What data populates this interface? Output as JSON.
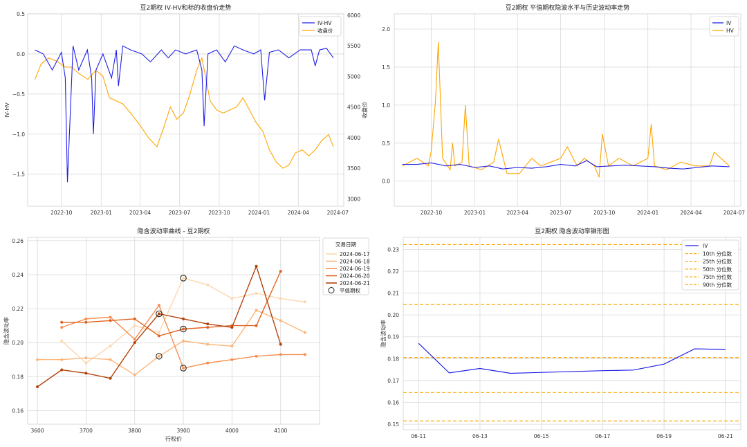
{
  "colors": {
    "blue": "#1f1fe6",
    "orange": "#ffa500",
    "red_axis": "#e02020",
    "blue_axis": "#2a7fc1",
    "grid": "#d9d9d9",
    "spine": "#cfcfcf"
  },
  "chart_data": [
    {
      "id": "ivhv",
      "type": "line",
      "title": "豆2期权 IV-HV和标的收盘价走势",
      "ylabel": "IV-HV",
      "y2label": "收盘价",
      "x_ticks": [
        "2022-10",
        "2023-01",
        "2023-04",
        "2023-07",
        "2023-10",
        "2024-01",
        "2024-04",
        "2024-07"
      ],
      "y_ticks": [
        "0.5",
        "0.0",
        "−0.5",
        "−1.0",
        "−1.5"
      ],
      "y2_ticks": [
        "6000",
        "5500",
        "5000",
        "4500",
        "4000",
        "3500",
        "3000"
      ],
      "xlim": [
        "2022-07-15",
        "2024-07-15"
      ],
      "ylim": [
        -1.9,
        0.5
      ],
      "y2lim": [
        2880,
        6020
      ],
      "legend": [
        "IV-HV",
        "收盘价"
      ],
      "legend_position": "upper-right",
      "series": [
        {
          "name": "IV-HV",
          "axis": "left",
          "color": "blue",
          "x": [
            "2022-08-01",
            "2022-08-20",
            "2022-09-10",
            "2022-10-01",
            "2022-10-10",
            "2022-10-15",
            "2022-10-28",
            "2022-11-10",
            "2022-11-30",
            "2022-12-10",
            "2022-12-14",
            "2022-12-20",
            "2023-01-05",
            "2023-01-25",
            "2023-02-05",
            "2023-02-10",
            "2023-02-20",
            "2023-03-10",
            "2023-04-05",
            "2023-04-25",
            "2023-05-20",
            "2023-06-05",
            "2023-06-22",
            "2023-07-15",
            "2023-08-10",
            "2023-08-22",
            "2023-08-27",
            "2023-09-05",
            "2023-09-25",
            "2023-10-15",
            "2023-11-05",
            "2023-11-25",
            "2023-12-20",
            "2024-01-05",
            "2024-01-10",
            "2024-01-14",
            "2024-01-25",
            "2024-02-15",
            "2024-03-10",
            "2024-04-05",
            "2024-05-01",
            "2024-05-10",
            "2024-05-20",
            "2024-06-05",
            "2024-06-21"
          ],
          "y": [
            0.05,
            0.0,
            -0.2,
            0.02,
            -0.3,
            -1.6,
            0.1,
            -0.2,
            0.05,
            -0.3,
            -1.0,
            -0.2,
            0.0,
            -0.3,
            0.05,
            -0.4,
            0.1,
            0.05,
            0.0,
            -0.1,
            0.05,
            -0.05,
            0.05,
            0.0,
            0.05,
            -0.2,
            -0.9,
            0.0,
            0.05,
            -0.1,
            0.1,
            0.05,
            0.0,
            0.05,
            -0.3,
            -0.58,
            0.02,
            0.05,
            -0.05,
            0.05,
            0.05,
            -0.15,
            0.05,
            0.07,
            -0.05
          ]
        },
        {
          "name": "收盘价",
          "axis": "right",
          "color": "orange",
          "x": [
            "2022-08-01",
            "2022-08-15",
            "2022-09-01",
            "2022-09-20",
            "2022-10-10",
            "2022-10-25",
            "2022-11-10",
            "2022-12-01",
            "2022-12-20",
            "2023-01-05",
            "2023-01-20",
            "2023-02-05",
            "2023-02-20",
            "2023-03-10",
            "2023-04-01",
            "2023-04-20",
            "2023-05-10",
            "2023-05-25",
            "2023-06-10",
            "2023-06-25",
            "2023-07-10",
            "2023-07-25",
            "2023-08-10",
            "2023-08-22",
            "2023-09-10",
            "2023-09-25",
            "2023-10-10",
            "2023-10-25",
            "2023-11-10",
            "2023-11-25",
            "2023-12-10",
            "2023-12-25",
            "2024-01-10",
            "2024-01-25",
            "2024-02-10",
            "2024-02-25",
            "2024-03-10",
            "2024-03-25",
            "2024-04-10",
            "2024-04-25",
            "2024-05-10",
            "2024-05-25",
            "2024-06-10",
            "2024-06-21"
          ],
          "y": [
            4950,
            5200,
            5300,
            5250,
            5150,
            5150,
            5050,
            4950,
            5100,
            5000,
            4650,
            4600,
            4550,
            4400,
            4200,
            4000,
            3850,
            4150,
            4500,
            4300,
            4400,
            4700,
            5100,
            5300,
            4600,
            4450,
            4400,
            4450,
            4500,
            4650,
            4450,
            4250,
            4100,
            3800,
            3600,
            3500,
            3550,
            3750,
            3800,
            3700,
            3800,
            3950,
            4050,
            3850
          ]
        }
      ]
    },
    {
      "id": "ivhv_level",
      "type": "line",
      "title": "豆2期权 平值期权隐波水平与历史波动率走势",
      "x_ticks": [
        "2022-10",
        "2023-01",
        "2023-04",
        "2023-07",
        "2023-10",
        "2024-01",
        "2024-04",
        "2024-07"
      ],
      "y_ticks": [
        "2.0",
        "1.5",
        "1.0",
        "0.5",
        "0.0"
      ],
      "xlim": [
        "2022-07-15",
        "2024-07-15"
      ],
      "ylim": [
        -0.33,
        2.2
      ],
      "legend": [
        "IV",
        "HV"
      ],
      "legend_position": "upper-right",
      "series": [
        {
          "name": "IV",
          "color": "blue",
          "x": [
            "2022-08-01",
            "2022-09-01",
            "2022-10-01",
            "2022-11-01",
            "2022-12-01",
            "2023-01-01",
            "2023-02-01",
            "2023-03-01",
            "2023-04-01",
            "2023-05-01",
            "2023-06-01",
            "2023-07-01",
            "2023-08-01",
            "2023-08-25",
            "2023-09-15",
            "2023-10-15",
            "2023-11-15",
            "2023-12-15",
            "2024-01-15",
            "2024-02-15",
            "2024-03-15",
            "2024-04-15",
            "2024-05-15",
            "2024-06-21"
          ],
          "y": [
            0.22,
            0.22,
            0.24,
            0.2,
            0.22,
            0.18,
            0.2,
            0.16,
            0.18,
            0.17,
            0.19,
            0.22,
            0.2,
            0.27,
            0.19,
            0.2,
            0.21,
            0.2,
            0.19,
            0.17,
            0.16,
            0.18,
            0.2,
            0.19
          ]
        },
        {
          "name": "HV",
          "color": "orange",
          "x": [
            "2022-08-01",
            "2022-09-01",
            "2022-09-25",
            "2022-10-01",
            "2022-10-10",
            "2022-10-16",
            "2022-10-25",
            "2022-11-10",
            "2022-11-15",
            "2022-11-20",
            "2022-12-05",
            "2022-12-12",
            "2022-12-20",
            "2023-01-15",
            "2023-02-10",
            "2023-02-20",
            "2023-03-10",
            "2023-04-05",
            "2023-05-01",
            "2023-05-20",
            "2023-06-10",
            "2023-07-01",
            "2023-07-15",
            "2023-08-05",
            "2023-08-20",
            "2023-09-10",
            "2023-09-20",
            "2023-09-27",
            "2023-10-10",
            "2023-11-01",
            "2023-12-01",
            "2024-01-01",
            "2024-01-08",
            "2024-01-15",
            "2024-02-10",
            "2024-03-10",
            "2024-04-10",
            "2024-05-10",
            "2024-05-20",
            "2024-06-21"
          ],
          "y": [
            0.2,
            0.3,
            0.2,
            0.4,
            1.05,
            1.83,
            0.3,
            0.15,
            0.5,
            0.2,
            0.25,
            1.0,
            0.2,
            0.15,
            0.25,
            0.55,
            0.1,
            0.1,
            0.3,
            0.2,
            0.25,
            0.3,
            0.45,
            0.2,
            0.3,
            0.2,
            0.05,
            0.62,
            0.2,
            0.3,
            0.2,
            0.3,
            0.75,
            0.2,
            0.15,
            0.25,
            0.2,
            0.2,
            0.38,
            0.2
          ]
        }
      ]
    },
    {
      "id": "smile",
      "type": "line",
      "title": "隐含波动率曲线 - 豆2期权",
      "xlabel": "行权价",
      "ylabel": "隐含波动率",
      "x_ticks": [
        "3600",
        "3700",
        "3800",
        "3900",
        "4000",
        "4100"
      ],
      "y_ticks": [
        "0.26",
        "0.24",
        "0.22",
        "0.20",
        "0.18",
        "0.16"
      ],
      "xlim": [
        3580,
        4180
      ],
      "ylim": [
        0.152,
        0.262
      ],
      "legend_title": "交易日期",
      "legend_position": "upper-right",
      "atm_label": "平值期权",
      "series": [
        {
          "name": "2024-06-17",
          "color": "#fdd7ad",
          "x": [
            3650,
            3700,
            3750,
            3800,
            3850,
            3900,
            3950,
            4000,
            4050,
            4100,
            4150
          ],
          "y": [
            0.201,
            0.188,
            0.198,
            0.21,
            0.206,
            0.238,
            0.234,
            0.226,
            0.229,
            0.226,
            0.224
          ]
        },
        {
          "name": "2024-06-18",
          "color": "#fdb67a",
          "x": [
            3600,
            3650,
            3700,
            3750,
            3800,
            3850,
            3900,
            3950,
            4000,
            4050,
            4100,
            4150
          ],
          "y": [
            0.19,
            0.19,
            0.191,
            0.19,
            0.181,
            0.192,
            0.201,
            0.199,
            0.198,
            0.219,
            0.213,
            0.206
          ]
        },
        {
          "name": "2024-06-19",
          "color": "#f98d4d",
          "x": [
            3650,
            3700,
            3750,
            3800,
            3850,
            3900,
            3950,
            4000,
            4050,
            4100,
            4150
          ],
          "y": [
            0.209,
            0.214,
            0.215,
            0.202,
            0.222,
            0.185,
            0.188,
            0.19,
            0.192,
            0.193,
            0.193
          ]
        },
        {
          "name": "2024-06-20",
          "color": "#e0621f",
          "x": [
            3650,
            3700,
            3750,
            3800,
            3850,
            3900,
            3950,
            4000,
            4050,
            4100
          ],
          "y": [
            0.212,
            0.212,
            0.213,
            0.214,
            0.204,
            0.208,
            0.209,
            0.21,
            0.21,
            0.242
          ]
        },
        {
          "name": "2024-06-21",
          "color": "#b2430b",
          "x": [
            3600,
            3650,
            3700,
            3750,
            3800,
            3850,
            3900,
            3950,
            4000,
            4050,
            4100
          ],
          "y": [
            0.174,
            0.184,
            0.182,
            0.179,
            0.2,
            0.217,
            0.214,
            0.211,
            0.209,
            0.245,
            0.199
          ]
        }
      ],
      "atm_points": [
        {
          "x": 3900,
          "y": 0.238
        },
        {
          "x": 3850,
          "y": 0.192
        },
        {
          "x": 3900,
          "y": 0.185
        },
        {
          "x": 3900,
          "y": 0.208
        },
        {
          "x": 3850,
          "y": 0.217
        }
      ]
    },
    {
      "id": "cone",
      "type": "line",
      "title": "豆2期权 隐含波动率锥形图",
      "ylabel": "隐含波动率",
      "x_ticks": [
        "06-11",
        "06-13",
        "06-15",
        "06-17",
        "06-19",
        "06-21"
      ],
      "x_tick_values": [
        11,
        13,
        15,
        17,
        19,
        21
      ],
      "y_ticks": [
        "0.23",
        "0.22",
        "0.21",
        "0.20",
        "0.19",
        "0.18",
        "0.17",
        "0.16",
        "0.15"
      ],
      "xlim": [
        10.5,
        21.5
      ],
      "ylim": [
        0.1475,
        0.2355
      ],
      "legend_position": "upper-right",
      "series": [
        {
          "name": "IV",
          "color": "blue",
          "x": [
            11,
            12,
            13,
            14,
            17,
            18,
            19,
            20,
            21
          ],
          "y": [
            0.187,
            0.1735,
            0.1755,
            0.1733,
            0.1745,
            0.1748,
            0.1775,
            0.1845,
            0.1842
          ]
        }
      ],
      "percentiles": [
        {
          "name": "10th 分位数",
          "value": 0.1515
        },
        {
          "name": "25th 分位数",
          "value": 0.1645
        },
        {
          "name": "50th 分位数",
          "value": 0.1805
        },
        {
          "name": "75th 分位数",
          "value": 0.2048
        },
        {
          "name": "90th 分位数",
          "value": 0.2322
        }
      ]
    }
  ]
}
